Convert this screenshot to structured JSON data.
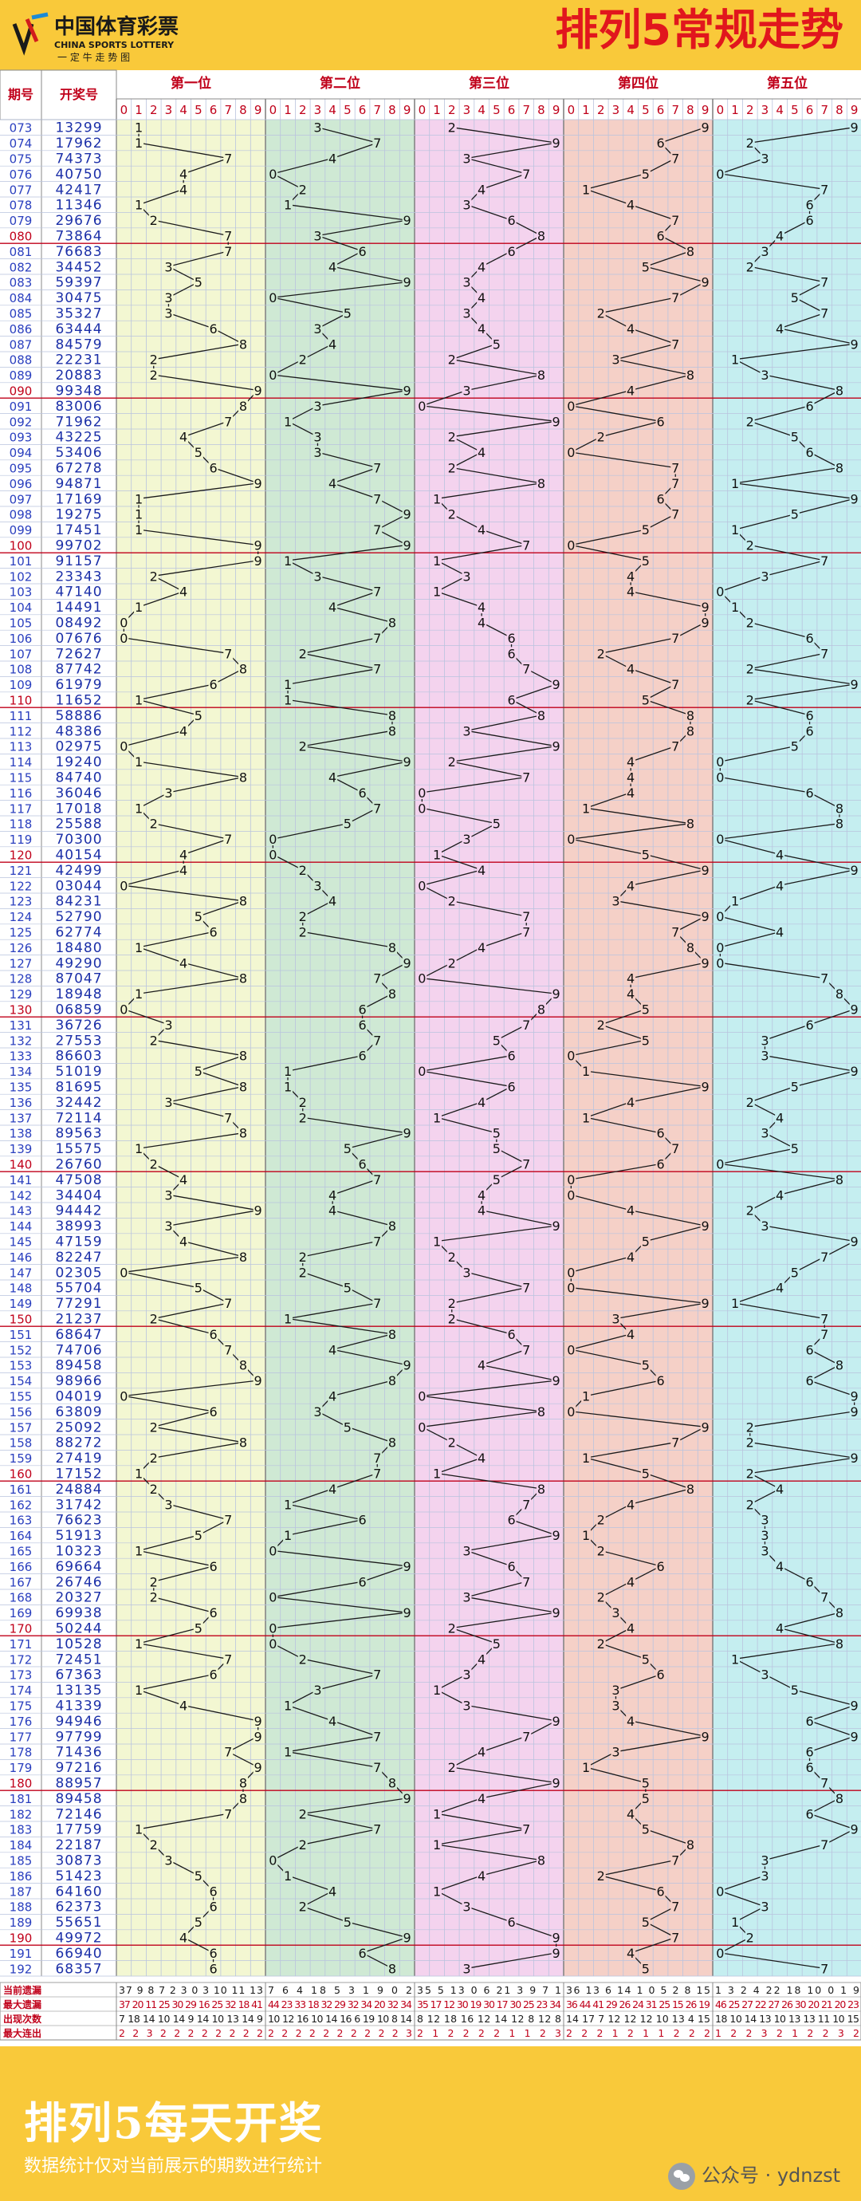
{
  "header": {
    "logo_cn": "中国体育彩票",
    "logo_en": "CHINA SPORTS LOTTERY",
    "logo_slogan": "一 定 牛 走 势 图",
    "title": "排列5常规走势"
  },
  "table": {
    "col_issue": "期号",
    "col_number": "开奖号",
    "positions": [
      "第一位",
      "第二位",
      "第三位",
      "第四位",
      "第五位"
    ],
    "digits": [
      "0",
      "1",
      "2",
      "3",
      "4",
      "5",
      "6",
      "7",
      "8",
      "9"
    ],
    "position_bg_colors": [
      "#f3f7d2",
      "#cfe9d4",
      "#f4d3ee",
      "#f5d0c7",
      "#c5eef0"
    ],
    "line_color": "#1a1a1a",
    "issue_color": "#2a3fbf",
    "number_color": "#1b2fa8",
    "divider_color": "#c0001a"
  },
  "chart_data": {
    "type": "table",
    "issues": [
      "073",
      "074",
      "075",
      "076",
      "077",
      "078",
      "079",
      "080",
      "081",
      "082",
      "083",
      "084",
      "085",
      "086",
      "087",
      "088",
      "089",
      "090",
      "091",
      "092",
      "093",
      "094",
      "095",
      "096",
      "097",
      "098",
      "099",
      "100",
      "101",
      "102",
      "103",
      "104",
      "105",
      "106",
      "107",
      "108",
      "109",
      "110",
      "111",
      "112",
      "113",
      "114",
      "115",
      "116",
      "117",
      "118",
      "119",
      "120",
      "121",
      "122",
      "123",
      "124",
      "125",
      "126",
      "127",
      "128",
      "129",
      "130",
      "131",
      "132",
      "133",
      "134",
      "135",
      "136",
      "137",
      "138",
      "139",
      "140",
      "141",
      "142",
      "143",
      "144",
      "145",
      "146",
      "147",
      "148",
      "149",
      "150",
      "151",
      "152",
      "153",
      "154",
      "155",
      "156",
      "157",
      "158",
      "159",
      "160",
      "161",
      "162",
      "163",
      "164",
      "165",
      "166",
      "167",
      "168",
      "169",
      "170",
      "171",
      "172",
      "173",
      "174",
      "175",
      "176",
      "177",
      "178",
      "179",
      "180",
      "181",
      "182",
      "183",
      "184",
      "185",
      "186",
      "187",
      "188",
      "189",
      "190",
      "191",
      "192"
    ],
    "numbers": [
      "13299",
      "17962",
      "74373",
      "40750",
      "42417",
      "11346",
      "29676",
      "73864",
      "76683",
      "34452",
      "59397",
      "30475",
      "35327",
      "63444",
      "84579",
      "22231",
      "20883",
      "99348",
      "83006",
      "71962",
      "43225",
      "53406",
      "67278",
      "94871",
      "17169",
      "19275",
      "17451",
      "99702",
      "91157",
      "23343",
      "47140",
      "14491",
      "08492",
      "07676",
      "72627",
      "87742",
      "61979",
      "11652",
      "58886",
      "48386",
      "02975",
      "19240",
      "84740",
      "36046",
      "17018",
      "25588",
      "70300",
      "40154",
      "42499",
      "03044",
      "84231",
      "52790",
      "62774",
      "18480",
      "49290",
      "87047",
      "18948",
      "06859",
      "36726",
      "27553",
      "86603",
      "51019",
      "81695",
      "32442",
      "72114",
      "89563",
      "15575",
      "26760",
      "47508",
      "34404",
      "94442",
      "38993",
      "47159",
      "82247",
      "02305",
      "55704",
      "77291",
      "21237",
      "68647",
      "74706",
      "89458",
      "98966",
      "04019",
      "63809",
      "25092",
      "88272",
      "27419",
      "17152",
      "24884",
      "31742",
      "76623",
      "51913",
      "10323",
      "69664",
      "26746",
      "20327",
      "69938",
      "50244",
      "10528",
      "72451",
      "67363",
      "13135",
      "41339",
      "94946",
      "97799",
      "71436",
      "97216",
      "88957",
      "89458",
      "72146",
      "17759",
      "22187",
      "30873",
      "51423",
      "64160",
      "62373",
      "55651",
      "49972",
      "66940",
      "68357"
    ],
    "stats": {
      "labels": [
        "当前遗漏",
        "最大遗漏",
        "出现次数",
        "最大连出"
      ],
      "current_omission": [
        "37 9 8 7 2 3 0 3 10 11 13",
        "7 6 4 18 5 3 1 9 0 2",
        "35 5 13 0 6 21 3 9 7 1",
        "36 13 6 14 1 0 5 2 8 15",
        "1 3 2 4 22 18 10 0 1 9"
      ],
      "max_omission": [
        "37 20 11 25 30 29 16 25 32 18 41",
        "44 23 33 18 32 29 32 34 20 32 34",
        "35 17 12 30 19 30 17 30 25 23 34",
        "36 44 41 29 26 24 31 25 15 26 19",
        "46 25 27 22 27 26 30 20 21 20 23"
      ],
      "occurrences": [
        "7 18 14 10 14 9 14 10 13 14 9",
        "10 12 16 10 14 16 6 19 10 8 14",
        "8 12 18 16 12 14 12 8 12 8",
        "14 17 7 12 12 12 10 13 4 15",
        "18 10 14 13 10 13 13 11 10 15"
      ],
      "max_consecutive": [
        "2 2 3 2 2 2 2 2 2 2 2",
        "2 2 2 2 2 2 2 2 2 2 3",
        "2 1 2 2 2 2 1 1 2 3",
        "2 2 2 1 2 1 1 2 2 2",
        "1 2 2 3 2 1 2 2 3 2"
      ]
    }
  },
  "footer": {
    "title": "排列5每天开奖",
    "subtitle": "数据统计仅对当前展示的期数进行统计",
    "watermark": "公众号 · ydnzst"
  }
}
